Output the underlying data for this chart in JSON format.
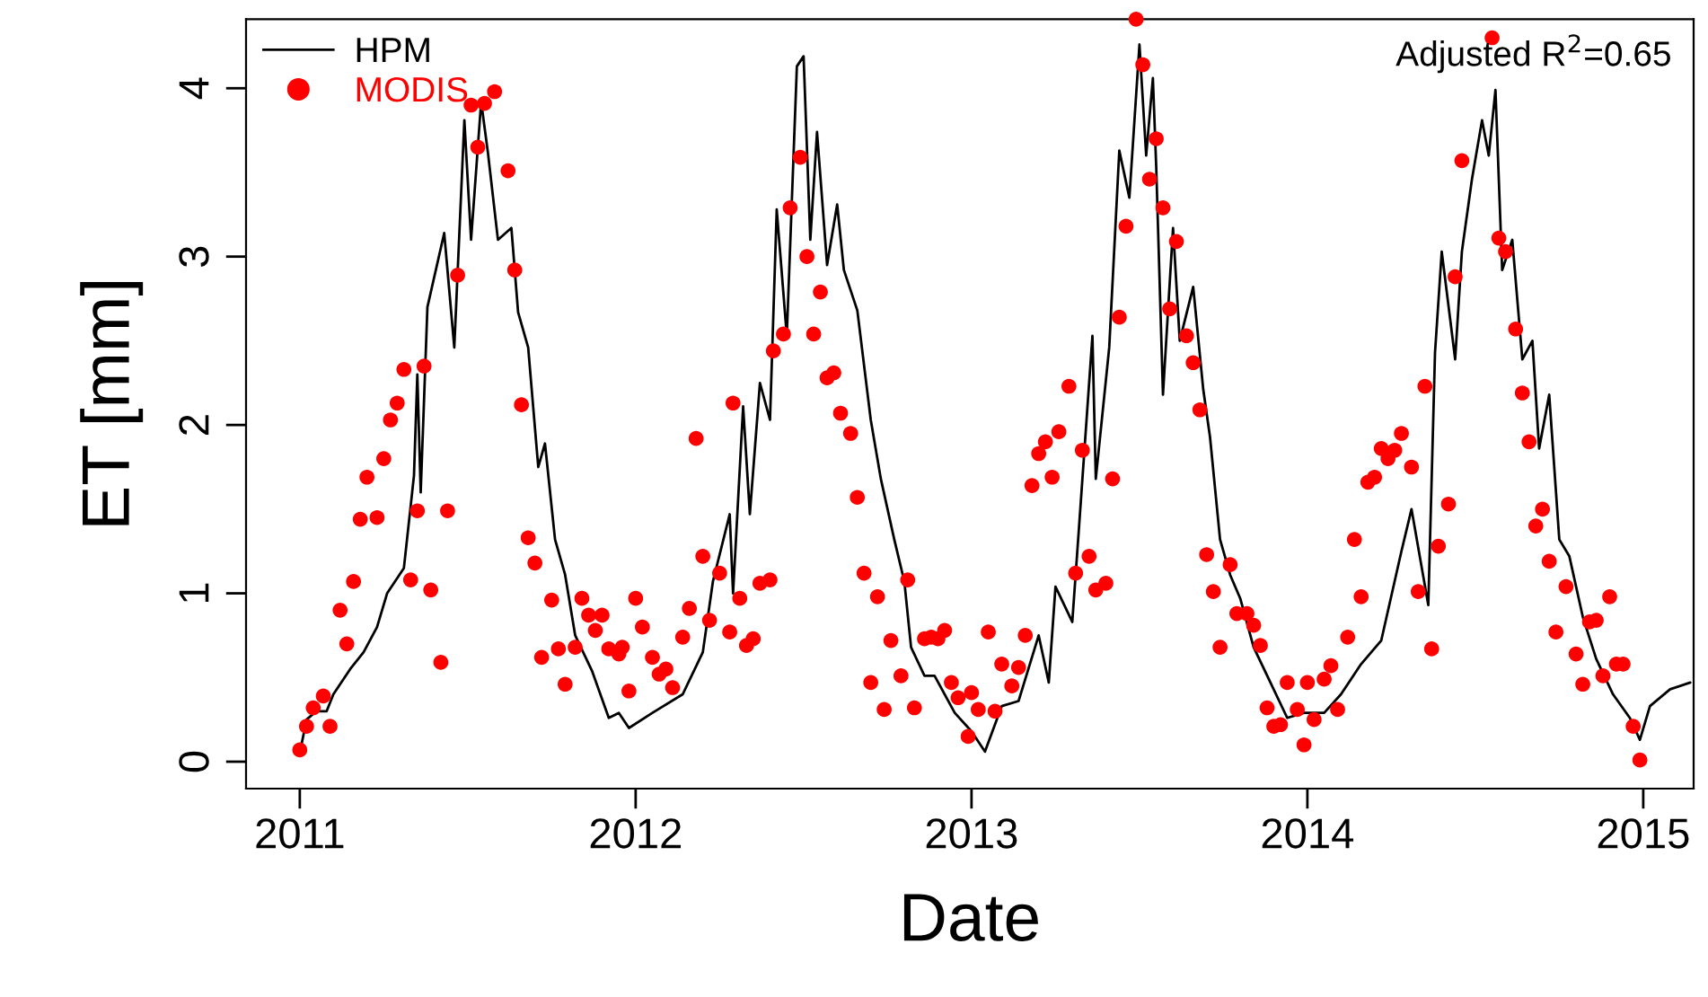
{
  "chart_data": {
    "type": "line",
    "xlabel": "Date",
    "ylabel": "ET [mm]",
    "xlim": [
      2010.84,
      2015.15
    ],
    "ylim": [
      -0.16,
      4.41
    ],
    "xticks": [
      2011,
      2012,
      2013,
      2014,
      2015
    ],
    "yticks": [
      0,
      1,
      2,
      3,
      4
    ],
    "grid": false,
    "legend": "top left",
    "annotations": [
      "Adjusted R$^{2}$=0.65"
    ],
    "series": [
      {
        "name": "HPM",
        "color": "#000000",
        "marker": "none",
        "line_style": "solid",
        "x": [
          2011.0,
          2011.02,
          2011.05,
          2011.08,
          2011.1,
          2011.15,
          2011.19,
          2011.23,
          2011.26,
          2011.31,
          2011.34,
          2011.35,
          2011.36,
          2011.38,
          2011.43,
          2011.46,
          2011.49,
          2011.51,
          2011.54,
          2011.56,
          2011.59,
          2011.63,
          2011.65,
          2011.68,
          2011.71,
          2011.73,
          2011.76,
          2011.79,
          2011.82,
          2011.87,
          2011.92,
          2011.95,
          2011.98,
          2012.05,
          2012.14,
          2012.2,
          2012.23,
          2012.28,
          2012.29,
          2012.32,
          2012.34,
          2012.37,
          2012.4,
          2012.42,
          2012.45,
          2012.48,
          2012.5,
          2012.52,
          2012.54,
          2012.57,
          2012.6,
          2012.62,
          2012.66,
          2012.7,
          2012.73,
          2012.77,
          2012.8,
          2012.82,
          2012.86,
          2012.89,
          2012.95,
          2013.0,
          2013.04,
          2013.09,
          2013.14,
          2013.2,
          2013.23,
          2013.25,
          2013.3,
          2013.32,
          2013.36,
          2013.37,
          2013.41,
          2013.44,
          2013.47,
          2013.5,
          2013.52,
          2013.54,
          2013.55,
          2013.57,
          2013.6,
          2013.62,
          2013.66,
          2013.69,
          2013.71,
          2013.74,
          2013.77,
          2013.8,
          2013.84,
          2013.89,
          2013.94,
          2013.99,
          2014.05,
          2014.1,
          2014.16,
          2014.22,
          2014.28,
          2014.31,
          2014.36,
          2014.38,
          2014.4,
          2014.44,
          2014.46,
          2014.49,
          2014.52,
          2014.54,
          2014.56,
          2014.58,
          2014.61,
          2014.64,
          2014.67,
          2014.69,
          2014.72,
          2014.75,
          2014.78,
          2014.82,
          2014.86,
          2014.91,
          2014.96,
          2014.99,
          2015.02,
          2015.08,
          2015.14
        ],
        "values": [
          0.05,
          0.25,
          0.3,
          0.3,
          0.4,
          0.55,
          0.65,
          0.8,
          1.0,
          1.15,
          1.7,
          2.3,
          1.6,
          2.7,
          3.14,
          2.46,
          3.81,
          3.1,
          3.92,
          3.62,
          3.1,
          3.17,
          2.67,
          2.46,
          1.75,
          1.89,
          1.32,
          1.11,
          0.75,
          0.54,
          0.26,
          0.29,
          0.2,
          0.29,
          0.4,
          0.65,
          1.07,
          1.47,
          1.0,
          2.11,
          1.47,
          2.25,
          2.03,
          3.28,
          2.53,
          4.13,
          4.19,
          3.1,
          3.74,
          2.95,
          3.31,
          2.92,
          2.68,
          2.03,
          1.68,
          1.32,
          1.07,
          0.68,
          0.51,
          0.51,
          0.29,
          0.18,
          0.06,
          0.33,
          0.36,
          0.75,
          0.47,
          1.04,
          0.83,
          1.39,
          2.53,
          1.68,
          2.46,
          3.63,
          3.35,
          4.26,
          3.6,
          4.06,
          3.53,
          2.18,
          3.17,
          2.5,
          2.82,
          2.21,
          1.93,
          1.32,
          1.11,
          0.97,
          0.68,
          0.47,
          0.26,
          0.29,
          0.29,
          0.4,
          0.58,
          0.72,
          1.25,
          1.5,
          0.93,
          2.43,
          3.03,
          2.39,
          3.03,
          3.46,
          3.81,
          3.6,
          3.99,
          2.92,
          3.1,
          2.39,
          2.5,
          1.86,
          2.18,
          1.32,
          1.22,
          0.86,
          0.61,
          0.4,
          0.26,
          0.13,
          0.33,
          0.43,
          0.47
        ]
      },
      {
        "name": "MODIS",
        "type": "scatter",
        "color": "#ff0000",
        "marker": "circle",
        "x": [
          2011.0,
          2011.02,
          2011.04,
          2011.07,
          2011.09,
          2011.14,
          2011.12,
          2011.16,
          2011.18,
          2011.23,
          2011.2,
          2011.25,
          2011.27,
          2011.29,
          2011.31,
          2011.37,
          2011.33,
          2011.35,
          2011.39,
          2011.42,
          2011.44,
          2011.47,
          2011.51,
          2011.53,
          2011.55,
          2011.58,
          2011.62,
          2011.64,
          2011.66,
          2011.68,
          2011.7,
          2011.75,
          2011.72,
          2011.77,
          2011.79,
          2011.82,
          2011.84,
          2011.86,
          2011.88,
          2011.9,
          2011.92,
          2011.95,
          2011.96,
          2011.98,
          2012.0,
          2012.02,
          2012.05,
          2012.07,
          2012.09,
          2012.11,
          2012.14,
          2012.16,
          2012.18,
          2012.2,
          2012.22,
          2012.25,
          2012.28,
          2012.29,
          2012.31,
          2012.33,
          2012.35,
          2012.37,
          2012.4,
          2012.41,
          2012.44,
          2012.46,
          2012.49,
          2012.51,
          2012.53,
          2012.55,
          2012.57,
          2012.59,
          2012.61,
          2012.64,
          2012.66,
          2012.68,
          2012.7,
          2012.72,
          2012.74,
          2012.76,
          2012.79,
          2012.81,
          2012.83,
          2012.86,
          2012.88,
          2012.9,
          2012.92,
          2012.94,
          2012.96,
          2012.99,
          2013.0,
          2013.02,
          2013.05,
          2013.07,
          2013.09,
          2013.12,
          2013.14,
          2013.16,
          2013.18,
          2013.2,
          2013.22,
          2013.24,
          2013.26,
          2013.29,
          2013.31,
          2013.33,
          2013.35,
          2013.37,
          2013.4,
          2013.42,
          2013.44,
          2013.46,
          2013.49,
          2013.51,
          2013.53,
          2013.55,
          2013.57,
          2013.59,
          2013.61,
          2013.64,
          2013.66,
          2013.68,
          2013.7,
          2013.72,
          2013.74,
          2013.77,
          2013.79,
          2013.82,
          2013.84,
          2013.86,
          2013.88,
          2013.9,
          2013.92,
          2013.94,
          2013.97,
          2013.99,
          2014.0,
          2014.02,
          2014.05,
          2014.07,
          2014.09,
          2014.12,
          2014.14,
          2014.16,
          2014.18,
          2014.2,
          2014.22,
          2014.24,
          2014.26,
          2014.28,
          2014.31,
          2014.33,
          2014.35,
          2014.37,
          2014.39,
          2014.42,
          2014.44,
          2014.46,
          2014.55,
          2014.57,
          2014.59,
          2014.62,
          2014.64,
          2014.66,
          2014.68,
          2014.7,
          2014.72,
          2014.74,
          2014.77,
          2014.8,
          2014.82,
          2014.84,
          2014.86,
          2014.88,
          2014.9,
          2014.92,
          2014.94,
          2014.97,
          2014.99
        ],
        "values": [
          0.07,
          0.21,
          0.32,
          0.39,
          0.21,
          0.7,
          0.9,
          1.07,
          1.44,
          1.45,
          1.69,
          1.8,
          2.03,
          2.13,
          2.33,
          2.35,
          1.08,
          1.49,
          1.02,
          0.59,
          1.49,
          2.89,
          3.9,
          3.65,
          3.91,
          3.98,
          3.51,
          2.92,
          2.12,
          1.33,
          1.18,
          0.96,
          0.62,
          0.67,
          0.46,
          0.68,
          0.97,
          0.87,
          0.78,
          0.87,
          0.67,
          0.64,
          0.68,
          0.42,
          0.97,
          0.8,
          0.62,
          0.52,
          0.55,
          0.44,
          0.74,
          0.91,
          1.92,
          1.22,
          0.84,
          1.12,
          0.77,
          2.13,
          0.97,
          0.69,
          0.73,
          1.06,
          1.08,
          2.44,
          2.54,
          3.29,
          3.59,
          3.0,
          2.54,
          2.79,
          2.28,
          2.31,
          2.07,
          1.95,
          1.57,
          1.12,
          0.47,
          0.98,
          0.31,
          0.72,
          0.51,
          1.08,
          0.32,
          0.73,
          0.74,
          0.73,
          0.78,
          0.47,
          0.38,
          0.15,
          0.41,
          0.31,
          0.77,
          0.3,
          0.58,
          0.45,
          0.56,
          0.75,
          1.64,
          1.83,
          1.9,
          1.69,
          1.96,
          2.23,
          1.12,
          1.85,
          1.22,
          1.02,
          1.06,
          1.68,
          2.64,
          3.18,
          4.41,
          4.14,
          3.46,
          3.7,
          3.29,
          2.69,
          3.09,
          2.53,
          2.37,
          2.09,
          1.23,
          1.01,
          0.68,
          1.17,
          0.88,
          0.88,
          0.81,
          0.69,
          0.32,
          0.21,
          0.22,
          0.47,
          0.31,
          0.1,
          0.47,
          0.25,
          0.49,
          0.57,
          0.31,
          0.74,
          1.32,
          0.98,
          1.66,
          1.69,
          1.86,
          1.8,
          1.85,
          1.95,
          1.75,
          1.01,
          2.23,
          0.67,
          1.28,
          1.53,
          2.88,
          3.57,
          4.3,
          3.11,
          3.03,
          2.57,
          2.19,
          1.9,
          1.4,
          1.5,
          1.19,
          0.77,
          1.04,
          0.64,
          0.46,
          0.83,
          0.84,
          0.51,
          0.98,
          0.58,
          0.58,
          0.21,
          0.01
        ]
      }
    ]
  }
}
